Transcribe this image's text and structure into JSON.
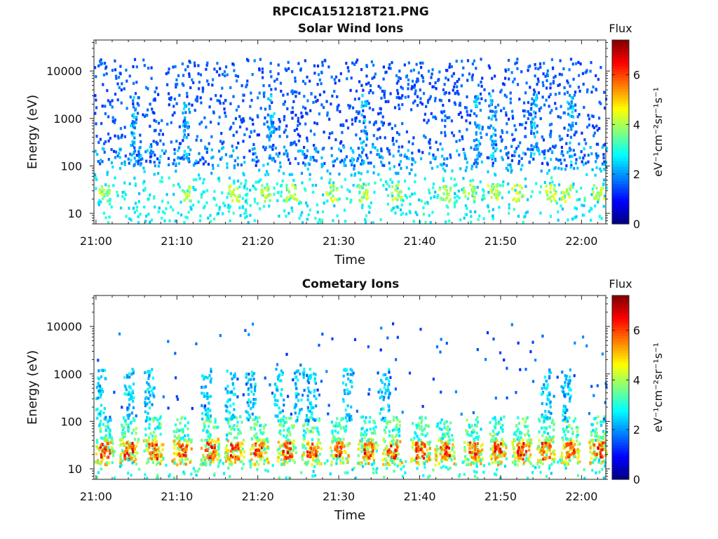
{
  "figure": {
    "title": "RPCICA151218T21.PNG"
  },
  "chart_data": [
    {
      "type": "heatmap",
      "title": "Solar Wind Ions",
      "xlabel": "Time",
      "ylabel": "Energy (eV)",
      "x_tick_labels": [
        "21:00",
        "21:10",
        "21:20",
        "21:30",
        "21:40",
        "21:50",
        "22:00"
      ],
      "x_range": [
        "20:59:45",
        "22:03:00"
      ],
      "y_scale": "log",
      "y_tick_labels": [
        "10",
        "100",
        "1000",
        "10000"
      ],
      "y_tick_values": [
        10,
        100,
        1000,
        10000
      ],
      "y_range": [
        6,
        45000
      ],
      "colorbar": {
        "label_top": "Flux",
        "label": "eV⁻¹cm⁻²sr⁻¹s⁻¹",
        "range": [
          0,
          7.4
        ],
        "tick_labels": [
          "0",
          "2",
          "4",
          "6"
        ],
        "tick_values": [
          0,
          2,
          4,
          6
        ],
        "colormap": "jet"
      },
      "distribution": {
        "description_free": true,
        "sparse_counts": {
          "energy_range": [
            100,
            20000
          ],
          "flux_range": [
            1.2,
            1.9
          ]
        },
        "low_energy_bands": {
          "energy_range": [
            6,
            60
          ],
          "flux_range": [
            2.4,
            4.6
          ]
        },
        "burst_minutes": [
          1,
          11,
          17,
          21,
          24,
          29,
          33,
          37,
          43,
          46,
          49,
          52,
          56,
          58,
          62
        ],
        "event_minutes": [
          4.5,
          11,
          21.5,
          33,
          47,
          49,
          54,
          58.5
        ]
      }
    },
    {
      "type": "heatmap",
      "title": "Cometary Ions",
      "xlabel": "Time",
      "ylabel": "Energy (eV)",
      "x_tick_labels": [
        "21:00",
        "21:10",
        "21:20",
        "21:30",
        "21:40",
        "21:50",
        "22:00"
      ],
      "x_range": [
        "20:59:45",
        "22:03:00"
      ],
      "y_scale": "log",
      "y_tick_labels": [
        "10",
        "100",
        "1000",
        "10000"
      ],
      "y_tick_values": [
        10,
        100,
        1000,
        10000
      ],
      "y_range": [
        6,
        45000
      ],
      "colorbar": {
        "label_top": "Flux",
        "label": "eV⁻¹cm⁻²sr⁻¹s⁻¹",
        "range": [
          0,
          7.4
        ],
        "tick_labels": [
          "0",
          "2",
          "4",
          "6"
        ],
        "tick_values": [
          0,
          2,
          4,
          6
        ],
        "colormap": "jet"
      },
      "distribution": {
        "main_band": {
          "energy_range": [
            12,
            45
          ],
          "flux_range": [
            4.5,
            6.8
          ]
        },
        "burst_minutes": [
          1,
          4,
          7,
          10.5,
          14,
          17,
          20,
          23.5,
          26.5,
          30,
          33.5,
          36.5,
          40,
          43,
          46.5,
          49.5,
          52.5,
          55.5,
          58.5,
          62
        ],
        "tail_minutes": [
          0.5,
          4,
          6.5,
          13.5,
          16.5,
          19,
          22.5,
          25,
          26.5,
          31,
          35.5,
          55.5,
          58
        ],
        "quiet_interval_minutes": [
          38,
          54
        ]
      }
    }
  ]
}
